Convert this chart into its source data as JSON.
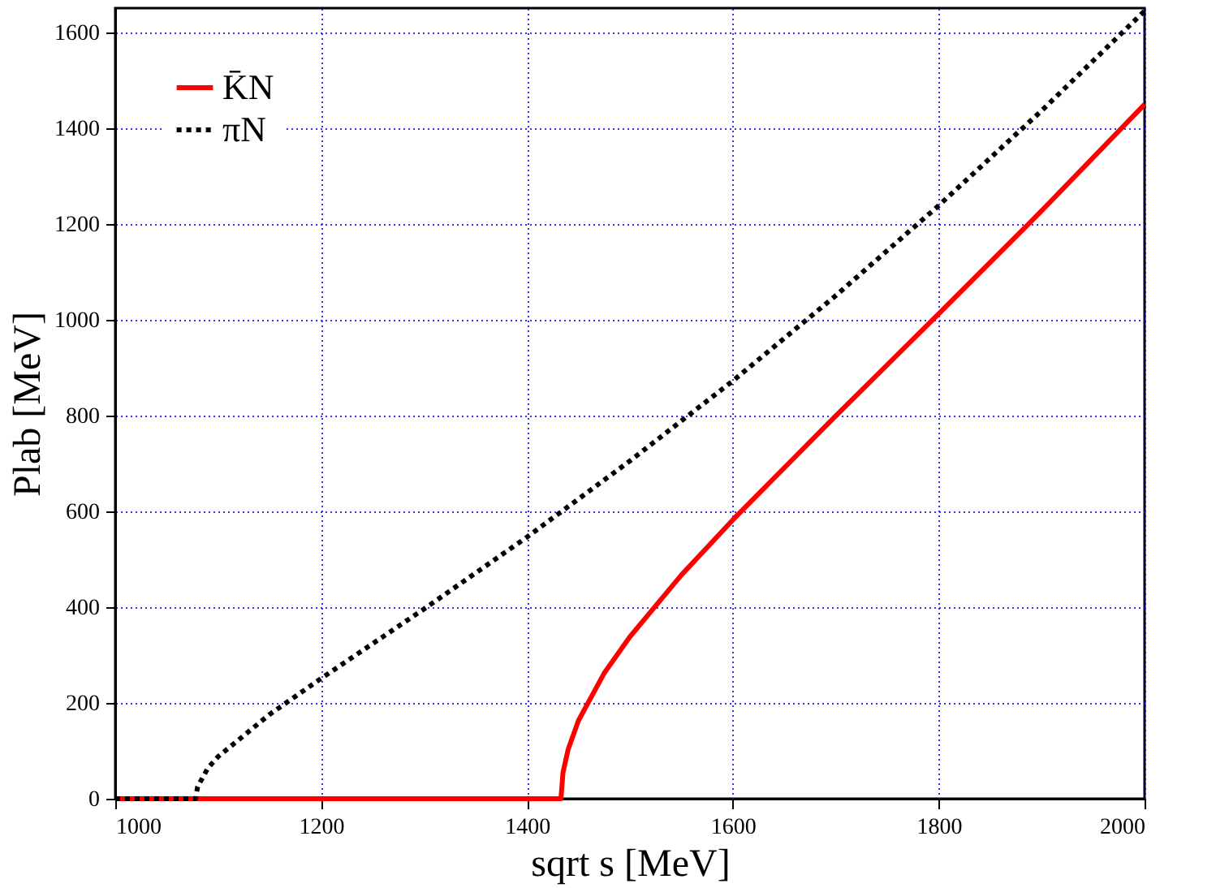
{
  "chart_data": {
    "type": "line",
    "xlabel": "sqrt s [MeV]",
    "ylabel": "Plab [MeV]",
    "xlim": [
      1000,
      2000
    ],
    "ylim": [
      0,
      1650
    ],
    "xticks": [
      1000,
      1200,
      1400,
      1600,
      1800,
      2000
    ],
    "yticks": [
      0,
      200,
      400,
      600,
      800,
      1000,
      1200,
      1400,
      1600
    ],
    "grid": true,
    "legend": "top left",
    "marker": "none",
    "series": [
      {
        "name": "K̄N",
        "color": "#ff0000",
        "line_style": "solid",
        "x": [
          1000,
          1433,
          1435,
          1440,
          1450,
          1475,
          1500,
          1550,
          1600,
          1700,
          1800,
          1900,
          2000
        ],
        "values": [
          0,
          0,
          55,
          103,
          163,
          262,
          338,
          467,
          582,
          799,
          1012,
          1227,
          1449
        ]
      },
      {
        "name": "πN",
        "color": "#000000",
        "line_style": "dotted",
        "x": [
          1000,
          1078,
          1080,
          1090,
          1100,
          1150,
          1200,
          1300,
          1400,
          1500,
          1600,
          1700,
          1800,
          1900,
          2000
        ],
        "values": [
          0,
          0,
          25,
          64,
          88,
          176,
          251,
          396,
          546,
          705,
          872,
          1050,
          1238,
          1436,
          1644
        ]
      }
    ]
  }
}
